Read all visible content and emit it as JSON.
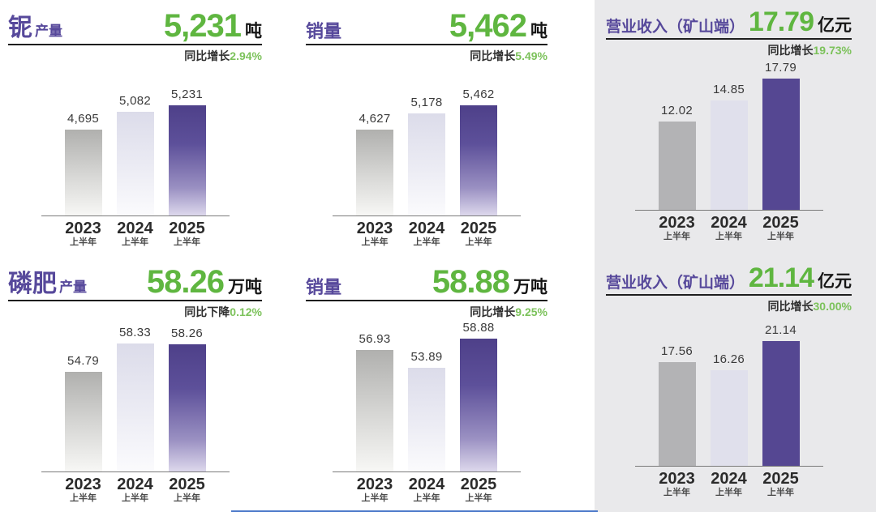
{
  "colors": {
    "title-purple": "#57499b",
    "headline-green": "#5fb640",
    "pct-green": "#7cc25b",
    "panel-bg": "#e9e9eb",
    "bar-2023": "#b3b3b5",
    "bar-2024": "#e0e0ec",
    "bar-2025": "#554792",
    "bottom-line-blue": "#4a78c9"
  },
  "categories": [
    {
      "year": "2023",
      "sub": "上半年"
    },
    {
      "year": "2024",
      "sub": "上半年"
    },
    {
      "year": "2025",
      "sub": "上半年"
    }
  ],
  "chart_data": [
    {
      "type": "bar",
      "id": "niobium-output",
      "title": "铌产量",
      "title_main": "铌",
      "title_suffix": "产量",
      "headline": "5,231",
      "unit": "吨",
      "change_label": "同比增长",
      "change_value": "2.94%",
      "categories": [
        "2023上半年",
        "2024上半年",
        "2025上半年"
      ],
      "values": [
        4695,
        5082,
        5231
      ],
      "labels": [
        "4,695",
        "5,082",
        "5,231"
      ]
    },
    {
      "type": "bar",
      "id": "niobium-sales",
      "title": "销量",
      "title_main": "销量",
      "title_suffix": "",
      "headline": "5,462",
      "unit": "吨",
      "change_label": "同比增长",
      "change_value": "5.49%",
      "categories": [
        "2023上半年",
        "2024上半年",
        "2025上半年"
      ],
      "values": [
        4627,
        5178,
        5462
      ],
      "labels": [
        "4,627",
        "5,178",
        "5,462"
      ]
    },
    {
      "type": "bar",
      "id": "revenue-mine-niobium",
      "title": "营业收入（矿山端）",
      "title_main": "营业收入（矿山端）",
      "title_suffix": "",
      "headline": "17.79",
      "unit": "亿元",
      "change_label": "同比增长",
      "change_value": "19.73%",
      "categories": [
        "2023上半年",
        "2024上半年",
        "2025上半年"
      ],
      "values": [
        12.02,
        14.85,
        17.79
      ],
      "labels": [
        "12.02",
        "14.85",
        "17.79"
      ]
    },
    {
      "type": "bar",
      "id": "phosphate-output",
      "title": "磷肥产量",
      "title_main": "磷肥",
      "title_suffix": "产量",
      "headline": "58.26",
      "unit": "万吨",
      "change_label": "同比下降",
      "change_value": "0.12%",
      "categories": [
        "2023上半年",
        "2024上半年",
        "2025上半年"
      ],
      "values": [
        54.79,
        58.33,
        58.26
      ],
      "labels": [
        "54.79",
        "58.33",
        "58.26"
      ]
    },
    {
      "type": "bar",
      "id": "phosphate-sales",
      "title": "销量",
      "title_main": "销量",
      "title_suffix": "",
      "headline": "58.88",
      "unit": "万吨",
      "change_label": "同比增长",
      "change_value": "9.25%",
      "categories": [
        "2023上半年",
        "2024上半年",
        "2025上半年"
      ],
      "values": [
        56.93,
        53.89,
        58.88
      ],
      "labels": [
        "56.93",
        "53.89",
        "58.88"
      ]
    },
    {
      "type": "bar",
      "id": "revenue-mine-phosphate",
      "title": "营业收入（矿山端）",
      "title_main": "营业收入（矿山端）",
      "title_suffix": "",
      "headline": "21.14",
      "unit": "亿元",
      "change_label": "同比增长",
      "change_value": "30.00%",
      "categories": [
        "2023上半年",
        "2024上半年",
        "2025上半年"
      ],
      "values": [
        17.56,
        16.26,
        21.14
      ],
      "labels": [
        "17.56",
        "16.26",
        "21.14"
      ]
    }
  ]
}
